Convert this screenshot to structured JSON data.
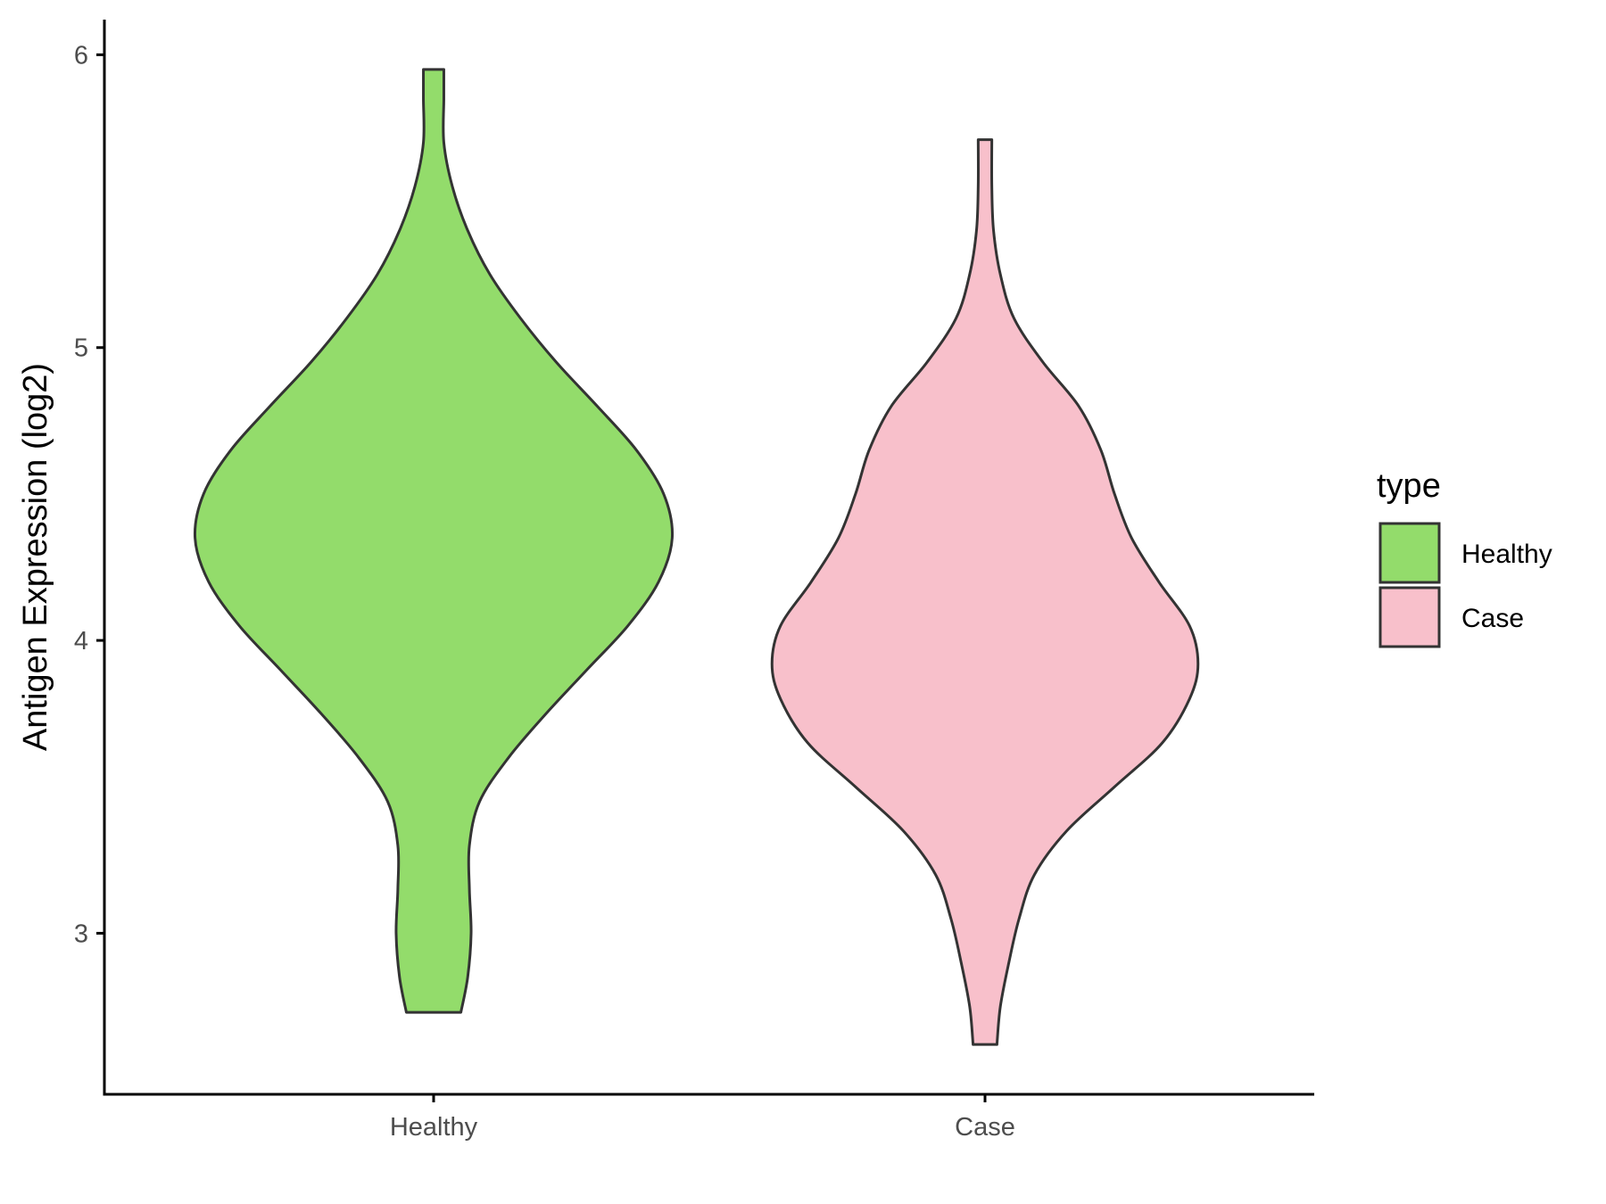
{
  "chart_data": {
    "type": "violin",
    "title": "",
    "xlabel": "",
    "ylabel": "Antigen Expression (log2)",
    "categories": [
      "Healthy",
      "Case"
    ],
    "ylim": [
      2.45,
      6.12
    ],
    "yticks": [
      3,
      4,
      5,
      6
    ],
    "grid": false,
    "legend": {
      "title": "type",
      "placement": "right",
      "entries": [
        {
          "label": "Healthy",
          "color": "#93DC6B"
        },
        {
          "label": "Case",
          "color": "#F8C0CB"
        }
      ]
    },
    "series": [
      {
        "category": "Healthy",
        "color": "#93DC6B",
        "min": 2.73,
        "max": 5.95,
        "density": [
          {
            "y": 2.73,
            "w": 0.08
          },
          {
            "y": 2.85,
            "w": 0.1
          },
          {
            "y": 3.0,
            "w": 0.11
          },
          {
            "y": 3.15,
            "w": 0.105
          },
          {
            "y": 3.3,
            "w": 0.105
          },
          {
            "y": 3.45,
            "w": 0.135
          },
          {
            "y": 3.6,
            "w": 0.22
          },
          {
            "y": 3.75,
            "w": 0.33
          },
          {
            "y": 3.9,
            "w": 0.45
          },
          {
            "y": 4.05,
            "w": 0.57
          },
          {
            "y": 4.2,
            "w": 0.66
          },
          {
            "y": 4.35,
            "w": 0.7
          },
          {
            "y": 4.5,
            "w": 0.675
          },
          {
            "y": 4.65,
            "w": 0.595
          },
          {
            "y": 4.8,
            "w": 0.48
          },
          {
            "y": 4.95,
            "w": 0.36
          },
          {
            "y": 5.1,
            "w": 0.255
          },
          {
            "y": 5.25,
            "w": 0.165
          },
          {
            "y": 5.4,
            "w": 0.1
          },
          {
            "y": 5.55,
            "w": 0.055
          },
          {
            "y": 5.7,
            "w": 0.03
          },
          {
            "y": 5.85,
            "w": 0.03
          },
          {
            "y": 5.95,
            "w": 0.03
          }
        ]
      },
      {
        "category": "Case",
        "color": "#F8C0CB",
        "min": 2.62,
        "max": 5.71,
        "density": [
          {
            "y": 2.62,
            "w": 0.035
          },
          {
            "y": 2.75,
            "w": 0.045
          },
          {
            "y": 2.9,
            "w": 0.07
          },
          {
            "y": 3.05,
            "w": 0.1
          },
          {
            "y": 3.2,
            "w": 0.145
          },
          {
            "y": 3.35,
            "w": 0.24
          },
          {
            "y": 3.5,
            "w": 0.38
          },
          {
            "y": 3.65,
            "w": 0.52
          },
          {
            "y": 3.8,
            "w": 0.6
          },
          {
            "y": 3.92,
            "w": 0.625
          },
          {
            "y": 4.05,
            "w": 0.6
          },
          {
            "y": 4.2,
            "w": 0.51
          },
          {
            "y": 4.35,
            "w": 0.43
          },
          {
            "y": 4.5,
            "w": 0.38
          },
          {
            "y": 4.65,
            "w": 0.34
          },
          {
            "y": 4.8,
            "w": 0.275
          },
          {
            "y": 4.95,
            "w": 0.17
          },
          {
            "y": 5.1,
            "w": 0.085
          },
          {
            "y": 5.25,
            "w": 0.045
          },
          {
            "y": 5.4,
            "w": 0.025
          },
          {
            "y": 5.55,
            "w": 0.02
          },
          {
            "y": 5.71,
            "w": 0.02
          }
        ]
      }
    ]
  }
}
